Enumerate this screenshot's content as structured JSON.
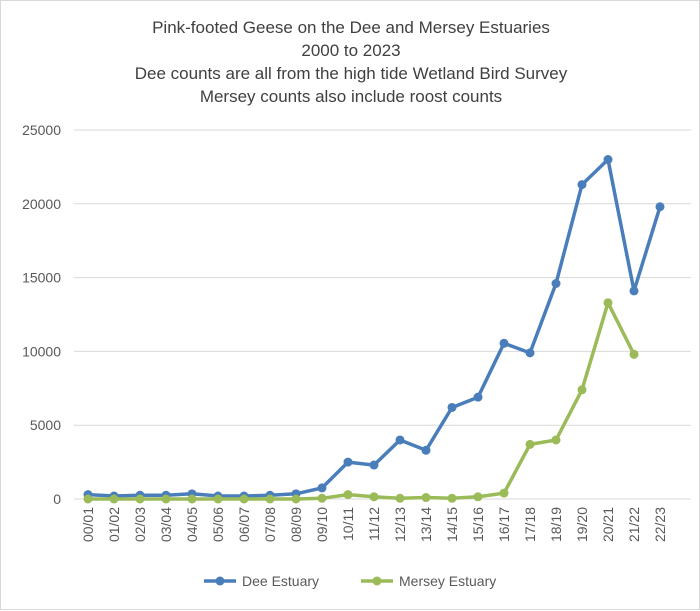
{
  "chart_data": {
    "type": "line",
    "title_lines": [
      "Pink-footed Geese on the Dee and Mersey Estuaries",
      "2000 to 2023",
      "Dee counts are all from the high tide Wetland Bird Survey",
      "Mersey counts also include roost counts"
    ],
    "xlabel": "",
    "ylabel": "",
    "ylim": [
      0,
      25000
    ],
    "y_ticks": [
      "0",
      "5000",
      "10000",
      "15000",
      "20000",
      "25000"
    ],
    "grid": "horizontal",
    "legend_position": "bottom",
    "categories": [
      "00/01",
      "01/02",
      "02/03",
      "03/04",
      "04/05",
      "05/06",
      "06/07",
      "07/08",
      "08/09",
      "09/10",
      "10/11",
      "11/12",
      "12/13",
      "13/14",
      "14/15",
      "15/16",
      "16/17",
      "17/18",
      "18/19",
      "19/20",
      "20/21",
      "21/22",
      "22/23"
    ],
    "series": [
      {
        "name": "Dee Estuary",
        "color": "#4a7ebb",
        "values": [
          300,
          200,
          250,
          250,
          350,
          200,
          200,
          250,
          350,
          750,
          2500,
          2300,
          4000,
          3300,
          6200,
          6900,
          10550,
          9900,
          14600,
          21300,
          23000,
          14100,
          19800
        ]
      },
      {
        "name": "Mersey Estuary",
        "color": "#9bbb59",
        "values": [
          0,
          0,
          0,
          0,
          0,
          0,
          0,
          0,
          0,
          50,
          300,
          150,
          50,
          100,
          50,
          150,
          400,
          3700,
          4000,
          7400,
          13300,
          9800,
          null
        ]
      }
    ]
  }
}
